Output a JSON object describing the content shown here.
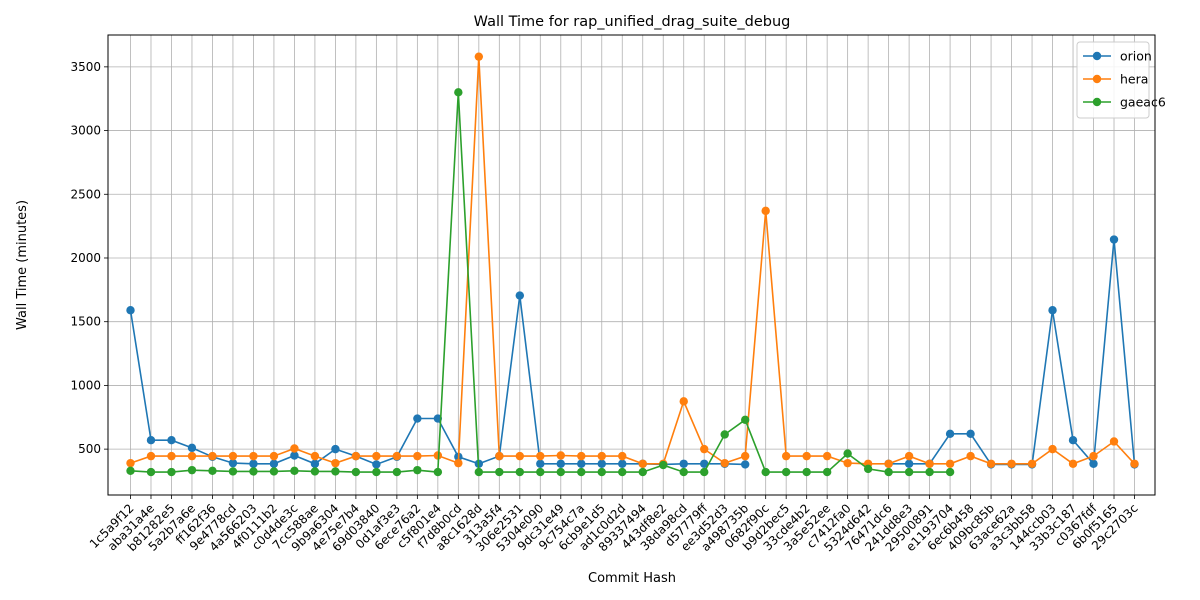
{
  "chart_data": {
    "type": "line",
    "title": "Wall Time for rap_unified_drag_suite_debug",
    "xlabel": "Commit Hash",
    "ylabel": "Wall Time (minutes)",
    "ylim": [
      140,
      3750
    ],
    "yticks": [
      500,
      1000,
      1500,
      2000,
      2500,
      3000,
      3500
    ],
    "grid": true,
    "legend_position": "top-right",
    "categories": [
      "1c5a9f12",
      "aba31a4e",
      "b81282e5",
      "5a2b7a6e",
      "ff162f36",
      "9e4778cd",
      "4a566203",
      "4f0111b2",
      "c0d4de3c",
      "7cc588ae",
      "9b9a6304",
      "4e75e7b4",
      "69d03840",
      "0d1af3e3",
      "6ece76a2",
      "c5f801e4",
      "f7d8b0cd",
      "a8c1628d",
      "313a5f4",
      "306e2531",
      "5304e090",
      "9dc31e49",
      "9c754c7a",
      "6cb9e1d5",
      "ad1c0d2d",
      "89337494",
      "443df8e2",
      "38da98cd",
      "d57779ff",
      "ee3d52d3",
      "a498735b",
      "0682f90c",
      "b9d2bec5",
      "33cde4b2",
      "3a5e52ee",
      "c7412fa0",
      "5324d642",
      "76471dc6",
      "241dd8e3",
      "29500891",
      "e1193704",
      "6ec6b458",
      "409bc85b",
      "63ace62a",
      "a3c3bb58",
      "144ccb03",
      "33b3c187",
      "c0367fdf",
      "6b0f5165",
      "29c2703c"
    ],
    "series": [
      {
        "name": "orion",
        "color": "#1f77b4",
        "values": [
          1590,
          570,
          570,
          510,
          440,
          390,
          385,
          385,
          450,
          385,
          500,
          445,
          380,
          440,
          740,
          740,
          440,
          385,
          445,
          1705,
          385,
          385,
          385,
          385,
          385,
          385,
          380,
          385,
          385,
          385,
          380,
          null,
          null,
          null,
          null,
          null,
          null,
          385,
          385,
          385,
          620,
          620,
          380,
          380,
          380,
          1590,
          570,
          385,
          2145,
          380
        ]
      },
      {
        "name": "hera",
        "color": "#ff7f0e",
        "values": [
          390,
          445,
          445,
          445,
          445,
          445,
          445,
          445,
          505,
          445,
          390,
          445,
          445,
          445,
          445,
          450,
          390,
          3580,
          445,
          445,
          445,
          450,
          445,
          445,
          445,
          385,
          385,
          875,
          500,
          390,
          445,
          2370,
          445,
          445,
          445,
          390,
          385,
          385,
          445,
          385,
          385,
          445,
          385,
          385,
          385,
          500,
          385,
          445,
          560,
          385
        ]
      },
      {
        "name": "gaeac6",
        "color": "#2ca02c",
        "values": [
          330,
          320,
          320,
          335,
          330,
          325,
          325,
          325,
          330,
          325,
          325,
          320,
          320,
          320,
          335,
          320,
          3300,
          320,
          320,
          320,
          320,
          320,
          320,
          320,
          320,
          320,
          375,
          320,
          320,
          615,
          730,
          320,
          320,
          320,
          320,
          465,
          345,
          320,
          320,
          320,
          320,
          null,
          null,
          null,
          null,
          null,
          null,
          null,
          null,
          null
        ]
      }
    ]
  }
}
